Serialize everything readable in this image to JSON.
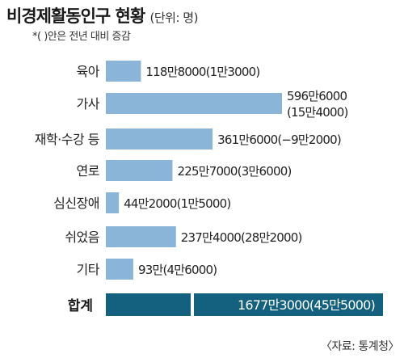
{
  "chart_data": {
    "type": "bar",
    "orientation": "horizontal",
    "title": "비경제활동인구 현황",
    "unit": "(단위: 명)",
    "note": "*(  )안은 전년 대비 증감",
    "source": "〈자료: 통계청〉",
    "categories": [
      "육아",
      "가사",
      "재학·수강 등",
      "연로",
      "심신장애",
      "쉬었음",
      "기타"
    ],
    "values": [
      1188000,
      5966000,
      3616000,
      2257000,
      442000,
      2374000,
      930000
    ],
    "value_labels": [
      "118만8000(1만3000)",
      "596만6000",
      "361만6000(−9만2000)",
      "225만7000(3만6000)",
      "44만2000(1만5000)",
      "237만4000(28만2000)",
      "93만(4만6000)"
    ],
    "value_labels_line2": [
      "",
      "(15만4000)",
      "",
      "",
      "",
      "",
      ""
    ],
    "total": {
      "label": "합계",
      "value": 16773000,
      "value_label": "1677만3000(45만5000)"
    },
    "colors": {
      "bar": "#8ab4d8",
      "total_bar": "#14607f",
      "total_text": "#ffffff"
    }
  }
}
